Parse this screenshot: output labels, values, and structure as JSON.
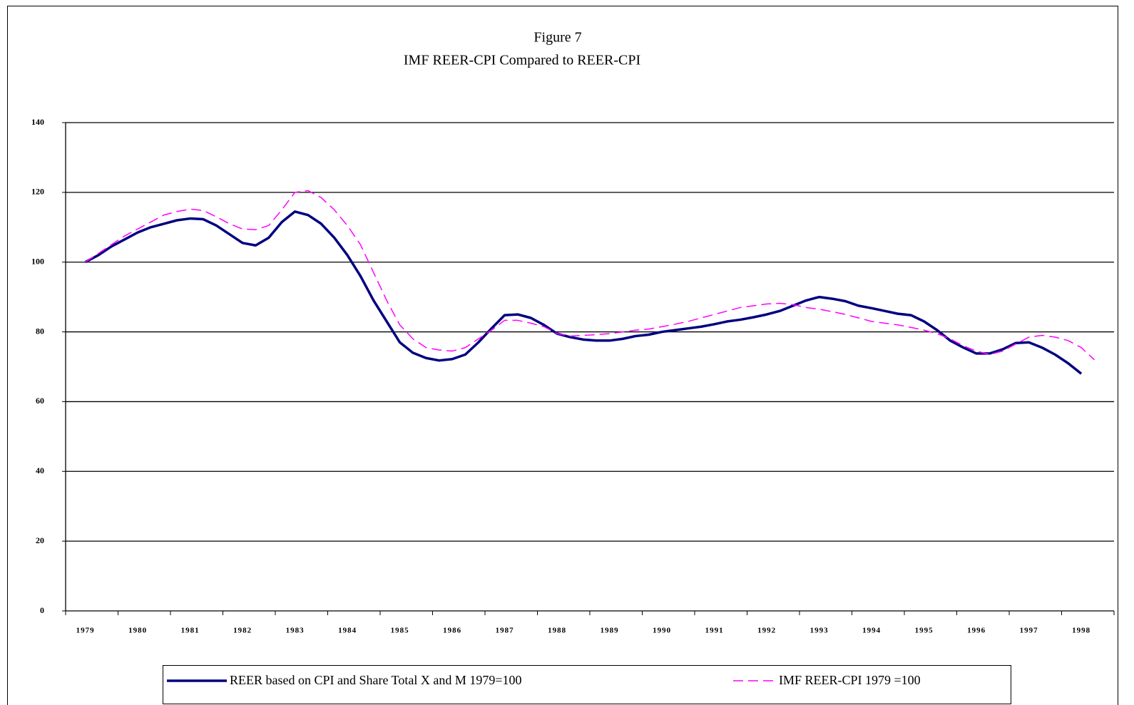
{
  "chart_data": {
    "type": "line",
    "title": "Figure 7",
    "subtitle": "IMF REER-CPI Compared to REER-CPI",
    "categories": [
      null,
      "1979",
      null,
      null,
      null,
      "1980",
      null,
      null,
      null,
      "1981",
      null,
      null,
      null,
      "1982",
      null,
      null,
      null,
      "1983",
      null,
      null,
      null,
      "1984",
      null,
      null,
      null,
      "1985",
      null,
      null,
      null,
      "1986",
      null,
      null,
      null,
      "1987",
      null,
      null,
      null,
      "1988",
      null,
      null,
      null,
      "1989",
      null,
      null,
      null,
      "1990",
      null,
      null,
      null,
      "1991",
      null,
      null,
      null,
      "1992",
      null,
      null,
      null,
      "1993",
      null,
      null,
      null,
      "1994",
      null,
      null,
      null,
      "1995",
      null,
      null,
      null,
      "1996",
      null,
      null,
      null,
      "1997",
      null,
      null,
      null,
      "1998",
      null,
      null
    ],
    "series": [
      {
        "name": "REER based on CPI and Share Total X and M 1979=100",
        "color": "#000080",
        "dash": false,
        "values": [
          null,
          100,
          102,
          104.5,
          106.5,
          108.5,
          110,
          111,
          112,
          112.5,
          112.3,
          110.5,
          108,
          105.5,
          104.8,
          107,
          111.5,
          114.5,
          113.5,
          111,
          107,
          102,
          96,
          89,
          83,
          77,
          74,
          72.5,
          71.8,
          72.2,
          73.5,
          77,
          81,
          84.8,
          85,
          84,
          82,
          79.5,
          78.5,
          77.8,
          77.5,
          77.5,
          78,
          78.8,
          79.2,
          80,
          80.5,
          81,
          81.5,
          82.2,
          83,
          83.5,
          84.2,
          85,
          86,
          87.5,
          89,
          90,
          89.5,
          88.8,
          87.5,
          86.8,
          86,
          85.2,
          84.8,
          83,
          80.5,
          77.5,
          75.5,
          73.8,
          73.8,
          75,
          76.8,
          77,
          75.5,
          73.5,
          71,
          68,
          null,
          null
        ]
      },
      {
        "name": "IMF REER-CPI 1979 =100",
        "color": "#ff00ff",
        "dash": true,
        "values": [
          null,
          100,
          102.5,
          105,
          107.5,
          109.5,
          111.5,
          113.5,
          114.5,
          115.2,
          114.8,
          113,
          111,
          109.5,
          109.3,
          110.5,
          115,
          120,
          120.5,
          118.5,
          115,
          110.5,
          105,
          97,
          89,
          82,
          78,
          75.5,
          74.8,
          74.5,
          75.5,
          78,
          80.5,
          83.3,
          83.3,
          82.5,
          81.5,
          79.5,
          78.8,
          79,
          79.2,
          79.5,
          80,
          80.5,
          80.8,
          81.5,
          82.2,
          83,
          84,
          85,
          86,
          87,
          87.5,
          88,
          88.2,
          87.8,
          87,
          86.5,
          85.8,
          85,
          84,
          83,
          82.5,
          82,
          81.3,
          80.5,
          79.5,
          78,
          76,
          74.5,
          73.5,
          74.5,
          76.5,
          78.5,
          79,
          78.5,
          77.5,
          75.5,
          72,
          null
        ]
      }
    ],
    "ylim": [
      0,
      140
    ],
    "yticks": [
      0,
      20,
      40,
      60,
      80,
      100,
      120,
      140
    ],
    "grid": true,
    "legend": "bottom"
  }
}
